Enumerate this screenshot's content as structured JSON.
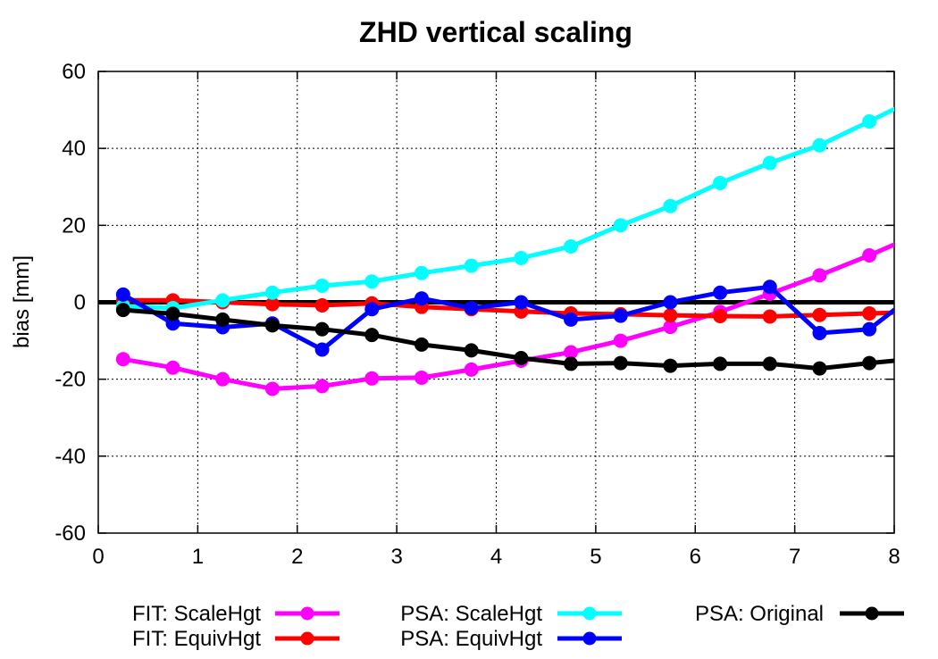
{
  "chart_data": {
    "type": "line",
    "title": "ZHD vertical scaling",
    "xlabel": "",
    "ylabel": "bias [mm]",
    "xlim": [
      0,
      8
    ],
    "ylim": [
      -60,
      60
    ],
    "x_ticks": [
      0,
      1,
      2,
      3,
      4,
      5,
      6,
      7,
      8
    ],
    "y_ticks": [
      -60,
      -40,
      -20,
      0,
      20,
      40,
      60
    ],
    "grid": true,
    "zero_line": true,
    "legend_position": "bottom",
    "series": [
      {
        "name": "FIT: ScaleHgt",
        "color": "#ff00ff",
        "x": [
          0.25,
          0.75,
          1.25,
          1.75,
          2.25,
          2.75,
          3.25,
          3.75,
          4.25,
          4.75,
          5.25,
          5.75,
          6.25,
          6.75,
          7.25,
          7.75,
          8.0
        ],
        "y": [
          -14.8,
          -17,
          -20,
          -22.5,
          -21.8,
          -19.8,
          -19.6,
          -17.5,
          -15.2,
          -13,
          -10,
          -6.4,
          -2.5,
          2.2,
          7,
          12.2,
          15
        ]
      },
      {
        "name": "FIT: EquivHgt",
        "color": "#ff0000",
        "x": [
          0.25,
          0.75,
          1.25,
          1.75,
          2.25,
          2.75,
          3.25,
          3.75,
          4.25,
          4.75,
          5.25,
          5.75,
          6.25,
          6.75,
          7.25,
          7.75,
          8.0
        ],
        "y": [
          0.5,
          0.5,
          0,
          -0.5,
          -0.8,
          -0.3,
          -1.2,
          -1.8,
          -2.4,
          -2.9,
          -3.1,
          -3.4,
          -3.6,
          -3.7,
          -3.3,
          -2.9,
          -2.7
        ]
      },
      {
        "name": "PSA: ScaleHgt",
        "color": "#00ffff",
        "x": [
          0.25,
          0.75,
          1.25,
          1.75,
          2.25,
          2.75,
          3.25,
          3.75,
          4.25,
          4.75,
          5.25,
          5.75,
          6.25,
          6.75,
          7.25,
          7.75,
          8.0
        ],
        "y": [
          -1,
          -1.5,
          0.5,
          2.5,
          4.3,
          5.4,
          7.6,
          9.5,
          11.5,
          14.5,
          20,
          25,
          31,
          36.2,
          40.8,
          47,
          50.2
        ]
      },
      {
        "name": "PSA: EquivHgt",
        "color": "#0000ff",
        "x": [
          0.25,
          0.75,
          1.25,
          1.75,
          2.25,
          2.75,
          3.25,
          3.75,
          4.25,
          4.75,
          5.25,
          5.75,
          6.25,
          6.75,
          7.25,
          7.75,
          8.0
        ],
        "y": [
          2,
          -5.5,
          -6.5,
          -5.5,
          -12.3,
          -1.8,
          1,
          -1.5,
          0,
          -4.5,
          -3.5,
          0,
          2.5,
          4,
          -8,
          -7,
          -2
        ]
      },
      {
        "name": "PSA: Original",
        "color": "#000000",
        "x": [
          0.25,
          0.75,
          1.25,
          1.75,
          2.25,
          2.75,
          3.25,
          3.75,
          4.25,
          4.75,
          5.25,
          5.75,
          6.25,
          6.75,
          7.25,
          7.75,
          8.0
        ],
        "y": [
          -2,
          -3,
          -4.5,
          -6,
          -7,
          -8.5,
          -11,
          -12.5,
          -14.5,
          -16,
          -15.8,
          -16.5,
          -16,
          -16,
          -17.2,
          -15.8,
          -15.2
        ]
      }
    ]
  }
}
